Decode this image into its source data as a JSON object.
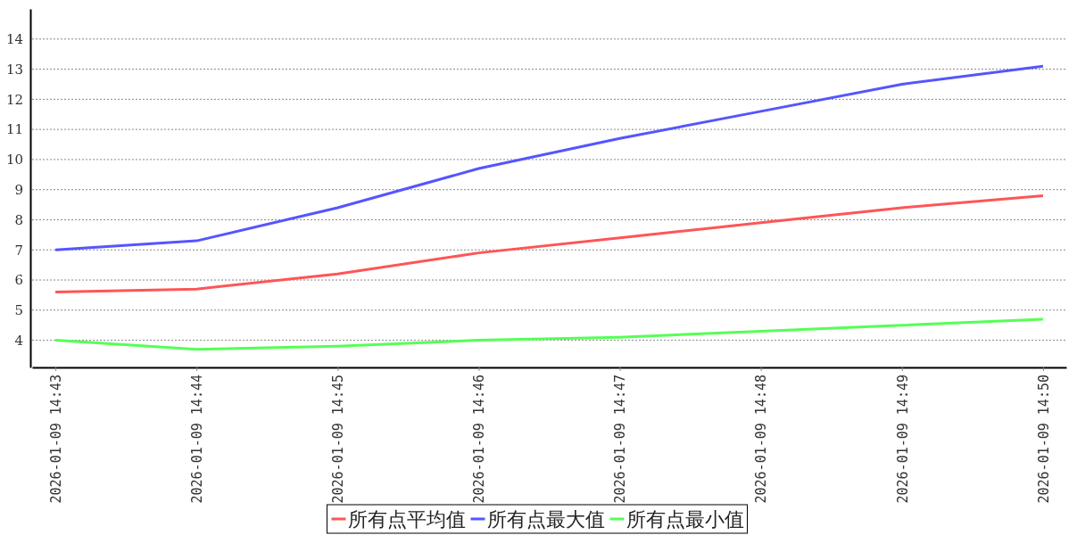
{
  "chart_data": {
    "type": "line",
    "categories": [
      "2026-01-09 14:43",
      "2026-01-09 14:44",
      "2026-01-09 14:45",
      "2026-01-09 14:46",
      "2026-01-09 14:47",
      "2026-01-09 14:48",
      "2026-01-09 14:49",
      "2026-01-09 14:50"
    ],
    "series": [
      {
        "name": "所有点平均值",
        "color": "#ff5555",
        "values": [
          5.6,
          5.7,
          6.2,
          6.9,
          7.4,
          7.9,
          8.4,
          8.8
        ]
      },
      {
        "name": "所有点最大值",
        "color": "#5555ff",
        "values": [
          7.0,
          7.3,
          8.4,
          9.7,
          10.7,
          11.6,
          12.5,
          13.1
        ]
      },
      {
        "name": "所有点最小值",
        "color": "#55ff55",
        "values": [
          4.0,
          3.7,
          3.8,
          4.0,
          4.1,
          4.3,
          4.5,
          4.7
        ]
      }
    ],
    "ylim": [
      3.1,
      15
    ],
    "yticks": [
      4,
      5,
      6,
      7,
      8,
      9,
      10,
      11,
      12,
      13,
      14
    ],
    "grid": "y",
    "legend": "bottom"
  }
}
